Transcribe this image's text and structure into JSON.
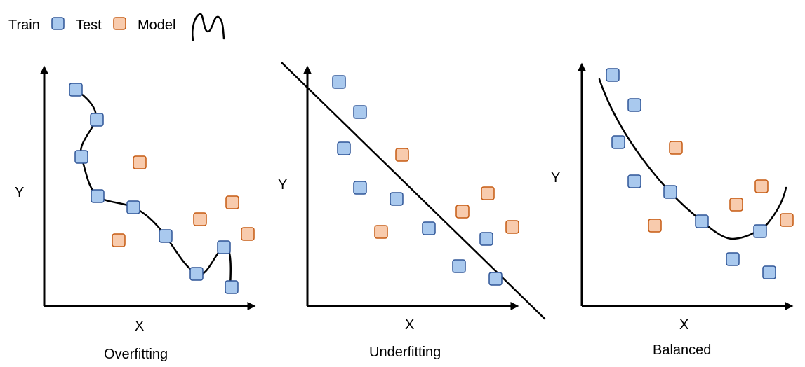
{
  "legend": {
    "train_label": "Train",
    "test_label": "Test",
    "model_label": "Model"
  },
  "colors": {
    "train_fill": "#a9c9ee",
    "train_stroke": "#2f5597",
    "test_fill": "#f8cbad",
    "test_stroke": "#c55a11",
    "line": "#000000"
  },
  "panels": [
    {
      "title": "Overfitting",
      "xlabel": "X",
      "ylabel": "Y",
      "model": "wiggly-curve",
      "train_points": [
        [
          108,
          128
        ],
        [
          138,
          171
        ],
        [
          116,
          224
        ],
        [
          139,
          280
        ],
        [
          190,
          296
        ],
        [
          236,
          337
        ],
        [
          280,
          391
        ],
        [
          319,
          353
        ],
        [
          330,
          410
        ]
      ],
      "test_points": [
        [
          199,
          232
        ],
        [
          169,
          343
        ],
        [
          285,
          313
        ],
        [
          331,
          289
        ],
        [
          353,
          334
        ]
      ]
    },
    {
      "title": "Underfitting",
      "xlabel": "X",
      "ylabel": "Y",
      "model": "straight-line",
      "train_points": [
        [
          483,
          117
        ],
        [
          513,
          160
        ],
        [
          490,
          212
        ],
        [
          513,
          268
        ],
        [
          565,
          284
        ],
        [
          611,
          326
        ],
        [
          654,
          380
        ],
        [
          693,
          341
        ],
        [
          706,
          398
        ]
      ],
      "test_points": [
        [
          573,
          221
        ],
        [
          543,
          331
        ],
        [
          659,
          302
        ],
        [
          695,
          276
        ],
        [
          730,
          324
        ]
      ]
    },
    {
      "title": "Balanced",
      "xlabel": "X",
      "ylabel": "Y",
      "model": "smooth-curve",
      "train_points": [
        [
          873,
          107
        ],
        [
          904,
          150
        ],
        [
          881,
          203
        ],
        [
          904,
          259
        ],
        [
          955,
          274
        ],
        [
          1000,
          316
        ],
        [
          1044,
          370
        ],
        [
          1083,
          330
        ],
        [
          1096,
          389
        ]
      ],
      "test_points": [
        [
          963,
          211
        ],
        [
          933,
          322
        ],
        [
          1049,
          292
        ],
        [
          1085,
          266
        ],
        [
          1121,
          314
        ]
      ]
    }
  ]
}
